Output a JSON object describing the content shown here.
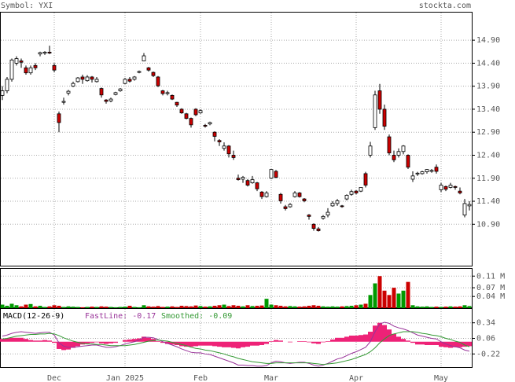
{
  "header": {
    "symbol": "Symbol: YXI",
    "site": "stockta.com"
  },
  "chart_data": [
    {
      "type": "candlestick",
      "categories": [
        null,
        null,
        null,
        null,
        null,
        null,
        null,
        null,
        null,
        null,
        null,
        "Dec",
        null,
        null,
        null,
        null,
        null,
        null,
        null,
        null,
        null,
        null,
        null,
        null,
        null,
        null,
        "Jan 2025",
        null,
        null,
        null,
        null,
        null,
        null,
        null,
        null,
        null,
        null,
        null,
        null,
        null,
        null,
        null,
        "Feb",
        null,
        null,
        null,
        null,
        null,
        null,
        null,
        null,
        null,
        null,
        null,
        null,
        null,
        null,
        "Mar",
        null,
        null,
        null,
        null,
        null,
        null,
        null,
        null,
        null,
        null,
        null,
        null,
        null,
        null,
        null,
        null,
        null,
        "Apr",
        null,
        null,
        null,
        null,
        null,
        null,
        null,
        null,
        null,
        null,
        null,
        null,
        null,
        null,
        null,
        null,
        null,
        "May",
        null,
        null,
        null,
        null,
        null,
        null
      ],
      "ohlc": [
        [
          13.7,
          13.9,
          13.6,
          13.8
        ],
        [
          13.8,
          14.1,
          13.75,
          14.05
        ],
        [
          14.05,
          14.5,
          14.0,
          14.47
        ],
        [
          14.4,
          14.55,
          14.35,
          14.5
        ],
        [
          14.45,
          14.5,
          14.3,
          14.42
        ],
        [
          14.3,
          14.35,
          14.15,
          14.19
        ],
        [
          14.19,
          14.35,
          14.15,
          14.3
        ],
        [
          14.35,
          14.4,
          14.25,
          14.3
        ],
        [
          14.6,
          14.65,
          14.55,
          14.63
        ],
        [
          14.62,
          14.66,
          14.58,
          14.64
        ],
        [
          14.64,
          14.78,
          14.6,
          14.62
        ],
        [
          14.35,
          14.4,
          14.2,
          14.25
        ],
        [
          13.3,
          13.35,
          12.9,
          13.11
        ],
        [
          13.55,
          13.65,
          13.5,
          13.57
        ],
        [
          13.75,
          13.82,
          13.7,
          13.79
        ],
        [
          13.9,
          14.0,
          13.88,
          13.96
        ],
        [
          14.0,
          14.1,
          13.98,
          14.08
        ],
        [
          14.1,
          14.15,
          13.95,
          14.05
        ],
        [
          14.02,
          14.14,
          14.0,
          14.1
        ],
        [
          14.1,
          14.12,
          13.98,
          14.05
        ],
        [
          14.0,
          14.1,
          13.98,
          14.05
        ],
        [
          13.85,
          13.87,
          13.65,
          13.71
        ],
        [
          13.6,
          13.62,
          13.52,
          13.57
        ],
        [
          13.58,
          13.65,
          13.55,
          13.62
        ],
        [
          13.72,
          13.78,
          13.7,
          13.76
        ],
        [
          13.8,
          13.86,
          13.78,
          13.84
        ],
        [
          13.96,
          14.08,
          13.94,
          14.05
        ],
        [
          14.05,
          14.1,
          13.98,
          14.01
        ],
        [
          14.05,
          14.12,
          14.02,
          14.1
        ],
        [
          14.2,
          14.24,
          14.18,
          14.22
        ],
        [
          14.45,
          14.62,
          14.44,
          14.56
        ],
        [
          14.3,
          14.32,
          14.22,
          14.25
        ],
        [
          14.2,
          14.22,
          14.1,
          14.13
        ],
        [
          14.1,
          14.12,
          13.88,
          13.91
        ],
        [
          13.8,
          13.82,
          13.7,
          13.74
        ],
        [
          13.74,
          13.8,
          13.7,
          13.76
        ],
        [
          13.7,
          13.72,
          13.6,
          13.62
        ],
        [
          13.55,
          13.56,
          13.45,
          13.49
        ],
        [
          13.4,
          13.42,
          13.3,
          13.32
        ],
        [
          13.3,
          13.32,
          13.18,
          13.2
        ],
        [
          13.2,
          13.22,
          13.0,
          13.06
        ],
        [
          13.4,
          13.42,
          13.25,
          13.28
        ],
        [
          13.32,
          13.4,
          13.3,
          13.37
        ],
        [
          13.05,
          13.08,
          13.0,
          13.03
        ],
        [
          13.08,
          13.13,
          13.05,
          13.11
        ],
        [
          12.9,
          12.92,
          12.7,
          12.81
        ],
        [
          12.72,
          12.75,
          12.6,
          12.69
        ],
        [
          12.55,
          12.68,
          12.5,
          12.6
        ],
        [
          12.6,
          12.62,
          12.35,
          12.43
        ],
        [
          12.4,
          12.5,
          12.3,
          12.35
        ],
        [
          11.9,
          11.98,
          11.85,
          11.87
        ],
        [
          11.88,
          11.95,
          11.8,
          11.92
        ],
        [
          11.85,
          11.88,
          11.72,
          11.75
        ],
        [
          11.8,
          11.95,
          11.78,
          11.87
        ],
        [
          11.8,
          11.82,
          11.62,
          11.67
        ],
        [
          11.6,
          11.62,
          11.45,
          11.5
        ],
        [
          11.5,
          11.62,
          11.48,
          11.58
        ],
        [
          11.9,
          12.1,
          11.88,
          12.09
        ],
        [
          12.05,
          12.08,
          11.9,
          11.92
        ],
        [
          11.55,
          11.58,
          11.35,
          11.41
        ],
        [
          11.28,
          11.32,
          11.2,
          11.24
        ],
        [
          11.28,
          11.36,
          11.26,
          11.33
        ],
        [
          11.5,
          11.62,
          11.48,
          11.58
        ],
        [
          11.58,
          11.6,
          11.48,
          11.5
        ],
        [
          11.45,
          11.47,
          11.38,
          11.41
        ],
        [
          11.1,
          11.12,
          11.0,
          11.07
        ],
        [
          10.9,
          10.92,
          10.76,
          10.81
        ],
        [
          10.8,
          10.84,
          10.74,
          10.76
        ],
        [
          11.03,
          11.1,
          11.0,
          11.07
        ],
        [
          11.1,
          11.25,
          11.05,
          11.16
        ],
        [
          11.3,
          11.4,
          11.28,
          11.36
        ],
        [
          11.35,
          11.45,
          11.3,
          11.41
        ],
        [
          11.3,
          11.32,
          11.26,
          11.29
        ],
        [
          11.45,
          11.55,
          11.42,
          11.53
        ],
        [
          11.55,
          11.65,
          11.52,
          11.61
        ],
        [
          11.62,
          11.64,
          11.55,
          11.58
        ],
        [
          11.62,
          11.7,
          11.6,
          11.7
        ],
        [
          12.0,
          12.04,
          11.7,
          11.75
        ],
        [
          12.4,
          12.69,
          12.35,
          12.6
        ],
        [
          13.0,
          13.8,
          12.95,
          13.71
        ],
        [
          13.8,
          13.95,
          13.3,
          13.4
        ],
        [
          13.4,
          13.5,
          12.95,
          13.03
        ],
        [
          12.8,
          12.85,
          12.4,
          12.45
        ],
        [
          12.4,
          12.5,
          12.25,
          12.3
        ],
        [
          12.4,
          12.55,
          12.35,
          12.48
        ],
        [
          12.48,
          12.62,
          12.42,
          12.6
        ],
        [
          12.4,
          12.42,
          12.1,
          12.14
        ],
        [
          11.88,
          12.05,
          11.82,
          11.95
        ],
        [
          12.0,
          12.04,
          11.95,
          12.01
        ],
        [
          12.0,
          12.06,
          11.98,
          12.04
        ],
        [
          12.04,
          12.1,
          12.0,
          12.09
        ],
        [
          12.05,
          12.1,
          12.02,
          12.07
        ],
        [
          12.14,
          12.2,
          12.0,
          12.05
        ],
        [
          11.65,
          11.8,
          11.6,
          11.75
        ],
        [
          11.72,
          11.74,
          11.62,
          11.66
        ],
        [
          11.7,
          11.8,
          11.68,
          11.75
        ],
        [
          11.72,
          11.74,
          11.65,
          11.7
        ],
        [
          11.62,
          11.7,
          11.55,
          11.58
        ],
        [
          11.1,
          11.45,
          11.05,
          11.35
        ],
        [
          11.3,
          11.4,
          11.2,
          11.33
        ]
      ],
      "up_color": "#ffffff",
      "down_color": "#cc0000",
      "ylim": [
        10.0,
        15.5
      ],
      "yticks": [
        {
          "value": 10.9,
          "label": "10.90"
        },
        {
          "value": 11.4,
          "label": "11.40"
        },
        {
          "value": 11.9,
          "label": "11.90"
        },
        {
          "value": 12.4,
          "label": "12.40"
        },
        {
          "value": 12.9,
          "label": "12.90"
        },
        {
          "value": 13.4,
          "label": "13.40"
        },
        {
          "value": 13.9,
          "label": "13.90"
        },
        {
          "value": 14.4,
          "label": "14.40"
        },
        {
          "value": 14.9,
          "label": "14.90"
        }
      ],
      "grid": true
    },
    {
      "type": "bar",
      "values": [
        0.012,
        0.008,
        0.015,
        0.01,
        0.006,
        0.012,
        0.014,
        0.006,
        0.008,
        0.004,
        0.006,
        0.01,
        0.008,
        0.004,
        0.006,
        0.005,
        0.004,
        0.003,
        0.004,
        0.005,
        0.004,
        0.006,
        0.005,
        0.004,
        0.003,
        0.004,
        0.005,
        0.008,
        0.004,
        0.003,
        0.01,
        0.006,
        0.005,
        0.007,
        0.004,
        0.005,
        0.006,
        0.004,
        0.008,
        0.007,
        0.006,
        0.009,
        0.007,
        0.005,
        0.006,
        0.008,
        0.01,
        0.012,
        0.007,
        0.01,
        0.008,
        0.006,
        0.01,
        0.007,
        0.008,
        0.009,
        0.032,
        0.012,
        0.01,
        0.008,
        0.006,
        0.007,
        0.006,
        0.005,
        0.006,
        0.008,
        0.01,
        0.008,
        0.006,
        0.005,
        0.006,
        0.005,
        0.006,
        0.007,
        0.008,
        0.01,
        0.012,
        0.015,
        0.045,
        0.085,
        0.11,
        0.06,
        0.045,
        0.07,
        0.05,
        0.06,
        0.09,
        0.01,
        0.006,
        0.005,
        0.006,
        0.004,
        0.005,
        0.004,
        0.005,
        0.006,
        0.005,
        0.006,
        0.01,
        0.007
      ],
      "up_color": "#009900",
      "down_color": "#cc0000",
      "ylim": [
        0,
        0.135
      ],
      "yticks": [
        {
          "value": 0.04,
          "label": "0.04 M"
        },
        {
          "value": 0.07,
          "label": "0.07 M"
        },
        {
          "value": 0.11,
          "label": "0.11 M"
        }
      ],
      "grid": true
    },
    {
      "type": "macd",
      "title": "MACD(12-26-9)",
      "histogram": {
        "color": "#ee2277",
        "values": [
          0.05,
          0.06,
          0.07,
          0.07,
          0.07,
          0.05,
          0.03,
          0.02,
          0.02,
          0.03,
          0.02,
          -0.02,
          -0.13,
          -0.15,
          -0.14,
          -0.11,
          -0.08,
          -0.05,
          -0.03,
          -0.02,
          -0.01,
          -0.03,
          -0.04,
          -0.03,
          -0.02,
          0.0,
          0.03,
          0.04,
          0.05,
          0.06,
          0.09,
          0.07,
          0.05,
          0.01,
          -0.02,
          -0.04,
          -0.05,
          -0.06,
          -0.08,
          -0.09,
          -0.09,
          -0.08,
          -0.07,
          -0.07,
          -0.07,
          -0.08,
          -0.09,
          -0.1,
          -0.1,
          -0.11,
          -0.12,
          -0.1,
          -0.09,
          -0.07,
          -0.07,
          -0.06,
          -0.04,
          0.01,
          0.03,
          0.02,
          0.0,
          -0.01,
          0.0,
          0.01,
          0.01,
          -0.01,
          -0.03,
          -0.04,
          -0.01,
          0.01,
          0.04,
          0.07,
          0.07,
          0.09,
          0.11,
          0.11,
          0.12,
          0.13,
          0.18,
          0.29,
          0.34,
          0.3,
          0.22,
          0.14,
          0.09,
          0.05,
          0.02,
          -0.02,
          -0.05,
          -0.05,
          -0.06,
          -0.06,
          -0.06,
          -0.09,
          -0.1,
          -0.11,
          -0.1,
          -0.1,
          -0.09,
          -0.08
        ]
      },
      "series": [
        {
          "name": "FastLine: -0.17",
          "color": "#993399",
          "values": [
            0.1,
            0.12,
            0.15,
            0.17,
            0.18,
            0.17,
            0.16,
            0.15,
            0.16,
            0.17,
            0.17,
            0.12,
            -0.02,
            -0.08,
            -0.1,
            -0.1,
            -0.09,
            -0.08,
            -0.07,
            -0.06,
            -0.06,
            -0.08,
            -0.1,
            -0.1,
            -0.09,
            -0.07,
            -0.04,
            -0.02,
            0.0,
            0.03,
            0.08,
            0.08,
            0.07,
            0.04,
            0.0,
            -0.03,
            -0.06,
            -0.09,
            -0.13,
            -0.16,
            -0.19,
            -0.2,
            -0.2,
            -0.22,
            -0.23,
            -0.26,
            -0.29,
            -0.32,
            -0.35,
            -0.38,
            -0.42,
            -0.42,
            -0.43,
            -0.43,
            -0.44,
            -0.44,
            -0.43,
            -0.38,
            -0.35,
            -0.36,
            -0.38,
            -0.39,
            -0.38,
            -0.37,
            -0.37,
            -0.39,
            -0.42,
            -0.44,
            -0.42,
            -0.39,
            -0.35,
            -0.31,
            -0.29,
            -0.25,
            -0.21,
            -0.18,
            -0.14,
            -0.1,
            0.0,
            0.18,
            0.32,
            0.35,
            0.33,
            0.28,
            0.25,
            0.23,
            0.2,
            0.16,
            0.12,
            0.1,
            0.08,
            0.06,
            0.05,
            0.0,
            -0.04,
            -0.07,
            -0.09,
            -0.11,
            -0.15,
            -0.17
          ]
        },
        {
          "name": "Smoothed: -0.09",
          "color": "#339933",
          "values": [
            0.05,
            0.06,
            0.08,
            0.1,
            0.11,
            0.12,
            0.13,
            0.13,
            0.14,
            0.14,
            0.15,
            0.14,
            0.11,
            0.07,
            0.04,
            0.01,
            -0.01,
            -0.03,
            -0.04,
            -0.04,
            -0.05,
            -0.05,
            -0.06,
            -0.07,
            -0.07,
            -0.07,
            -0.07,
            -0.06,
            -0.05,
            -0.03,
            -0.01,
            0.01,
            0.02,
            0.03,
            0.02,
            0.01,
            -0.01,
            -0.03,
            -0.05,
            -0.07,
            -0.1,
            -0.12,
            -0.13,
            -0.15,
            -0.16,
            -0.18,
            -0.2,
            -0.22,
            -0.25,
            -0.27,
            -0.3,
            -0.32,
            -0.34,
            -0.36,
            -0.37,
            -0.38,
            -0.39,
            -0.39,
            -0.38,
            -0.38,
            -0.38,
            -0.38,
            -0.38,
            -0.38,
            -0.38,
            -0.38,
            -0.39,
            -0.4,
            -0.41,
            -0.4,
            -0.39,
            -0.38,
            -0.36,
            -0.34,
            -0.32,
            -0.29,
            -0.26,
            -0.23,
            -0.18,
            -0.11,
            -0.02,
            0.05,
            0.11,
            0.14,
            0.16,
            0.18,
            0.18,
            0.18,
            0.17,
            0.15,
            0.14,
            0.12,
            0.11,
            0.09,
            0.06,
            0.04,
            0.01,
            -0.01,
            -0.06,
            -0.09
          ]
        }
      ],
      "ylim": [
        -0.47,
        0.59
      ],
      "yticks": [
        -0.22,
        0.06,
        0.34
      ],
      "grid": true
    }
  ]
}
